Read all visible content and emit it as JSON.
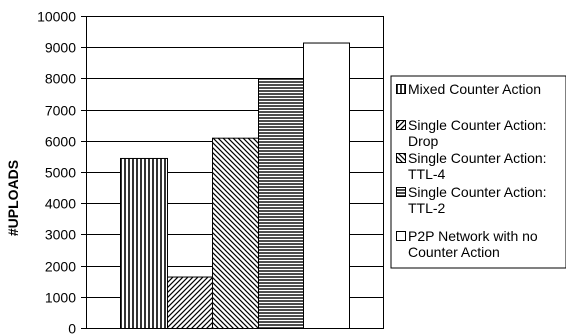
{
  "chart_data": {
    "type": "bar",
    "ylabel": "#UPLOADS",
    "xlabel": "",
    "title": "",
    "ylim": [
      0,
      10000
    ],
    "yticks": [
      0,
      1000,
      2000,
      3000,
      4000,
      5000,
      6000,
      7000,
      8000,
      9000,
      10000
    ],
    "grid": true,
    "legend_position": "right",
    "series": [
      {
        "name": "Mixed Counter Action",
        "legend_lines": [
          "Mixed Counter Action"
        ],
        "value": 5450,
        "pattern": "vertical"
      },
      {
        "name": "Single Counter Action: Drop",
        "legend_lines": [
          "Single Counter Action:",
          "Drop"
        ],
        "value": 1650,
        "pattern": "diag-up"
      },
      {
        "name": "Single Counter Action: TTL-4",
        "legend_lines": [
          "Single Counter Action:",
          "TTL-4"
        ],
        "value": 6100,
        "pattern": "diag-down"
      },
      {
        "name": "Single Counter Action: TTL-2",
        "legend_lines": [
          "Single Counter Action:",
          "TTL-2"
        ],
        "value": 8000,
        "pattern": "horizontal"
      },
      {
        "name": "P2P Network with no Counter Action",
        "legend_lines": [
          "P2P Network with no",
          "Counter Action"
        ],
        "value": 9150,
        "pattern": "none"
      }
    ]
  }
}
